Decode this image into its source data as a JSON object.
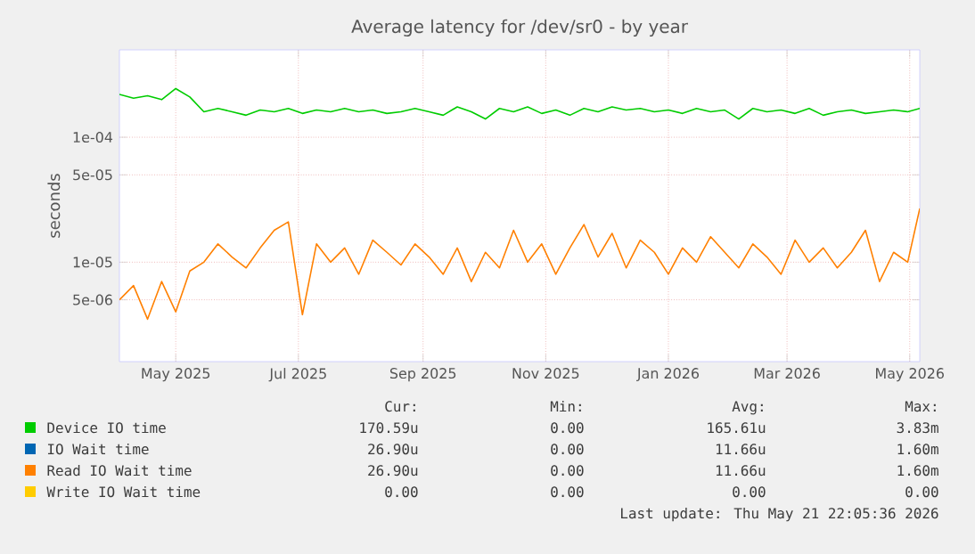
{
  "chart_data": {
    "type": "line",
    "title": "Average latency for /dev/sr0 - by year",
    "ylabel": "seconds",
    "log": "y",
    "grid": true,
    "legend": "bottom",
    "ylim": [
      1.6e-06,
      0.0005
    ],
    "yticks": [
      {
        "value": 0.0001,
        "label": "1e-04"
      },
      {
        "value": 5e-05,
        "label": "5e-05"
      },
      {
        "value": 1e-05,
        "label": "1e-05"
      },
      {
        "value": 5e-06,
        "label": "5e-06"
      }
    ],
    "xlim": [
      "2025-04-17",
      "2026-05-20"
    ],
    "xticks": [
      {
        "value": "2025-05-15",
        "label": "May 2025"
      },
      {
        "value": "2025-07-15",
        "label": "Jul 2025"
      },
      {
        "value": "2025-09-15",
        "label": "Sep 2025"
      },
      {
        "value": "2025-11-15",
        "label": "Nov 2025"
      },
      {
        "value": "2026-01-15",
        "label": "Jan 2026"
      },
      {
        "value": "2026-03-15",
        "label": "Mar 2026"
      },
      {
        "value": "2026-05-15",
        "label": "May 2026"
      }
    ],
    "x": [
      "2025-04-17",
      "2025-04-24",
      "2025-05-01",
      "2025-05-08",
      "2025-05-15",
      "2025-05-22",
      "2025-05-29",
      "2025-06-05",
      "2025-06-12",
      "2025-06-19",
      "2025-06-26",
      "2025-07-03",
      "2025-07-10",
      "2025-07-17",
      "2025-07-24",
      "2025-07-31",
      "2025-08-07",
      "2025-08-14",
      "2025-08-21",
      "2025-08-28",
      "2025-09-04",
      "2025-09-11",
      "2025-09-18",
      "2025-09-25",
      "2025-10-02",
      "2025-10-09",
      "2025-10-16",
      "2025-10-23",
      "2025-10-30",
      "2025-11-06",
      "2025-11-13",
      "2025-11-20",
      "2025-11-27",
      "2025-12-04",
      "2025-12-11",
      "2025-12-18",
      "2025-12-25",
      "2026-01-01",
      "2026-01-08",
      "2026-01-15",
      "2026-01-22",
      "2026-01-29",
      "2026-02-05",
      "2026-02-12",
      "2026-02-19",
      "2026-02-26",
      "2026-03-05",
      "2026-03-12",
      "2026-03-19",
      "2026-03-26",
      "2026-04-02",
      "2026-04-09",
      "2026-04-16",
      "2026-04-23",
      "2026-04-30",
      "2026-05-07",
      "2026-05-14",
      "2026-05-20"
    ],
    "series": [
      {
        "name": "Device IO time",
        "color": "#00cc00",
        "values": [
          0.00022,
          0.000205,
          0.000215,
          0.0002,
          0.000245,
          0.00021,
          0.00016,
          0.00017,
          0.00016,
          0.00015,
          0.000165,
          0.00016,
          0.00017,
          0.000155,
          0.000165,
          0.00016,
          0.00017,
          0.00016,
          0.000165,
          0.000155,
          0.00016,
          0.00017,
          0.00016,
          0.00015,
          0.000175,
          0.00016,
          0.00014,
          0.00017,
          0.00016,
          0.000175,
          0.000155,
          0.000165,
          0.00015,
          0.00017,
          0.00016,
          0.000175,
          0.000165,
          0.00017,
          0.00016,
          0.000165,
          0.000155,
          0.00017,
          0.00016,
          0.000165,
          0.00014,
          0.00017,
          0.00016,
          0.000165,
          0.000155,
          0.00017,
          0.00015,
          0.00016,
          0.000165,
          0.000155,
          0.00016,
          0.000165,
          0.00016,
          0.00017
        ]
      },
      {
        "name": "IO Wait time",
        "color": "#0066b3",
        "values": [
          null,
          null,
          null,
          null,
          null,
          null,
          null,
          null,
          null,
          null,
          null,
          null,
          null,
          null,
          null,
          null,
          null,
          null,
          null,
          null,
          null,
          null,
          null,
          null,
          null,
          null,
          null,
          null,
          null,
          null,
          null,
          null,
          null,
          null,
          null,
          null,
          null,
          null,
          null,
          null,
          null,
          null,
          null,
          null,
          null,
          null,
          null,
          null,
          null,
          null,
          null,
          null,
          null,
          null,
          null,
          null,
          null,
          null
        ]
      },
      {
        "name": "Read IO Wait time",
        "color": "#ff8000",
        "values": [
          5e-06,
          6.5e-06,
          3.5e-06,
          7e-06,
          4e-06,
          8.5e-06,
          1e-05,
          1.4e-05,
          1.1e-05,
          9e-06,
          1.3e-05,
          1.8e-05,
          2.1e-05,
          3.8e-06,
          1.4e-05,
          1e-05,
          1.3e-05,
          8e-06,
          1.5e-05,
          1.2e-05,
          9.5e-06,
          1.4e-05,
          1.1e-05,
          8e-06,
          1.3e-05,
          7e-06,
          1.2e-05,
          9e-06,
          1.8e-05,
          1e-05,
          1.4e-05,
          8e-06,
          1.3e-05,
          2e-05,
          1.1e-05,
          1.7e-05,
          9e-06,
          1.5e-05,
          1.2e-05,
          8e-06,
          1.3e-05,
          1e-05,
          1.6e-05,
          1.2e-05,
          9e-06,
          1.4e-05,
          1.1e-05,
          8e-06,
          1.5e-05,
          1e-05,
          1.3e-05,
          9e-06,
          1.2e-05,
          1.8e-05,
          7e-06,
          1.2e-05,
          1e-05,
          2.69e-05
        ]
      },
      {
        "name": "Write IO Wait time",
        "color": "#ffcc00",
        "values": [
          null,
          null,
          null,
          null,
          null,
          null,
          null,
          null,
          null,
          null,
          null,
          null,
          null,
          null,
          null,
          null,
          null,
          null,
          null,
          null,
          null,
          null,
          null,
          null,
          null,
          null,
          null,
          null,
          null,
          null,
          null,
          null,
          null,
          null,
          null,
          null,
          null,
          null,
          null,
          null,
          null,
          null,
          null,
          null,
          null,
          null,
          null,
          null,
          null,
          null,
          null,
          null,
          null,
          null,
          null,
          null,
          null,
          null
        ]
      }
    ],
    "annotations": [
      "Cur:",
      "Min:",
      "Avg:",
      "Max:",
      "170.59u",
      "0.00",
      "165.61u",
      "3.83m",
      "26.90u",
      "0.00",
      "11.66u",
      "1.60m",
      "26.90u",
      "0.00",
      "11.66u",
      "1.60m",
      "0.00",
      "0.00",
      "0.00",
      "0.00",
      "Last update: Thu May 21 22:05:36 2026"
    ]
  }
}
